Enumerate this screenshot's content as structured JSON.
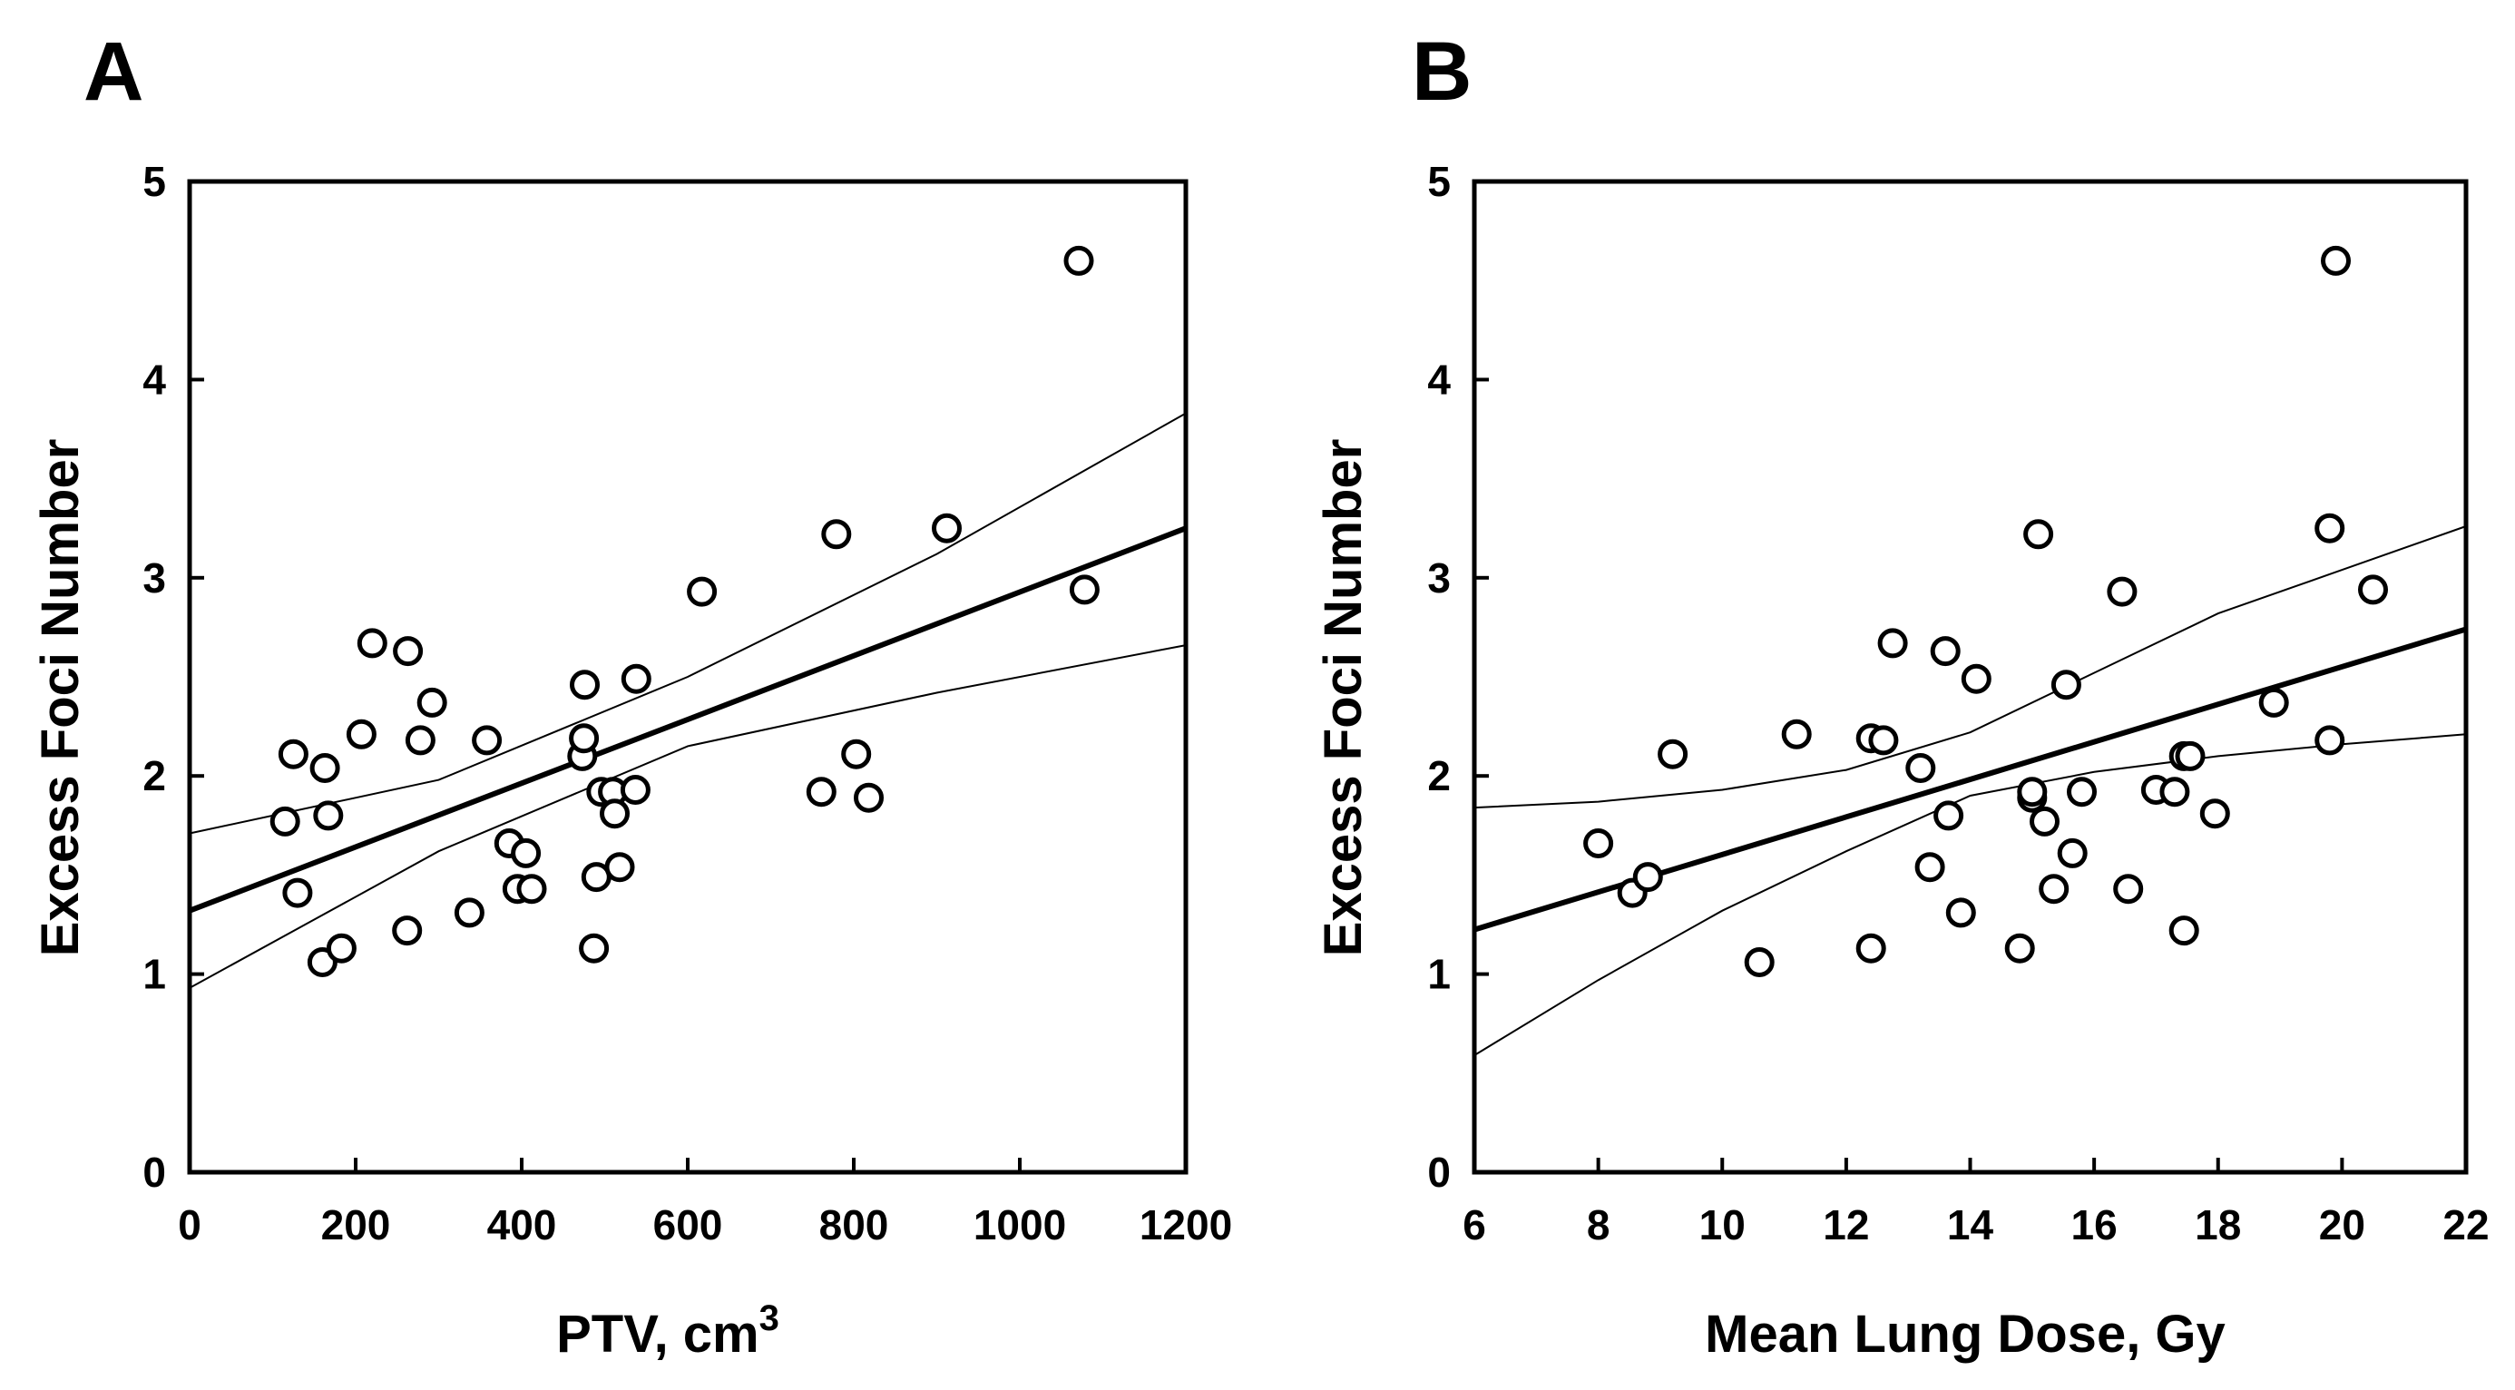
{
  "chart_data": [
    {
      "type": "scatter",
      "panel_label": "A",
      "xlabel": "PTV, cm",
      "xlabel_sup": "3",
      "ylabel": "Excess Foci Number",
      "xlim": [
        0,
        1200
      ],
      "ylim": [
        0,
        5
      ],
      "xticks": [
        0,
        200,
        400,
        600,
        800,
        1000,
        1200
      ],
      "yticks": [
        0,
        1,
        2,
        3,
        4,
        5
      ],
      "grid": false,
      "points": [
        [
          115,
          1.77
        ],
        [
          125,
          2.11
        ],
        [
          130,
          1.41
        ],
        [
          160,
          1.06
        ],
        [
          163,
          2.04
        ],
        [
          167,
          1.8
        ],
        [
          183,
          1.13
        ],
        [
          207,
          2.21
        ],
        [
          220,
          2.67
        ],
        [
          262,
          1.22
        ],
        [
          263,
          2.63
        ],
        [
          278,
          2.18
        ],
        [
          292,
          2.37
        ],
        [
          337,
          1.31
        ],
        [
          358,
          2.18
        ],
        [
          385,
          1.66
        ],
        [
          395,
          1.43
        ],
        [
          405,
          1.61
        ],
        [
          412,
          1.43
        ],
        [
          473,
          2.1
        ],
        [
          475,
          2.19
        ],
        [
          476,
          2.46
        ],
        [
          487,
          1.13
        ],
        [
          490,
          1.49
        ],
        [
          496,
          1.92
        ],
        [
          510,
          1.92
        ],
        [
          512,
          1.81
        ],
        [
          518,
          1.54
        ],
        [
          537,
          1.93
        ],
        [
          538,
          2.49
        ],
        [
          617,
          2.93
        ],
        [
          761,
          1.92
        ],
        [
          779,
          3.22
        ],
        [
          803,
          2.11
        ],
        [
          818,
          1.89
        ],
        [
          912,
          3.25
        ],
        [
          1071,
          4.6
        ],
        [
          1078,
          2.94
        ]
      ],
      "fit_line": {
        "intercept": 1.32,
        "slope": 0.0016083
      },
      "ci_upper": [
        [
          0,
          1.71
        ],
        [
          300,
          1.98
        ],
        [
          600,
          2.5
        ],
        [
          900,
          3.12
        ],
        [
          1200,
          3.83
        ]
      ],
      "ci_lower": [
        [
          0,
          0.93
        ],
        [
          300,
          1.62
        ],
        [
          600,
          2.15
        ],
        [
          900,
          2.42
        ],
        [
          1200,
          2.66
        ]
      ]
    },
    {
      "type": "scatter",
      "panel_label": "B",
      "xlabel": "Mean Lung Dose, Gy",
      "ylabel": "Excess Foci Number",
      "xlim": [
        6,
        22
      ],
      "ylim": [
        0,
        5
      ],
      "xticks": [
        6,
        8,
        10,
        12,
        14,
        16,
        18,
        20,
        22
      ],
      "yticks": [
        0,
        1,
        2,
        3,
        4,
        5
      ],
      "grid": false,
      "points": [
        [
          8.0,
          1.66
        ],
        [
          8.55,
          1.41
        ],
        [
          8.8,
          1.49
        ],
        [
          9.2,
          2.11
        ],
        [
          10.6,
          1.06
        ],
        [
          11.2,
          2.21
        ],
        [
          12.4,
          1.13
        ],
        [
          12.4,
          2.19
        ],
        [
          12.6,
          2.18
        ],
        [
          12.75,
          2.67
        ],
        [
          13.2,
          2.04
        ],
        [
          13.35,
          1.54
        ],
        [
          13.6,
          2.63
        ],
        [
          13.65,
          1.8
        ],
        [
          13.85,
          1.31
        ],
        [
          14.1,
          2.49
        ],
        [
          14.8,
          1.13
        ],
        [
          15.0,
          1.89
        ],
        [
          15.0,
          1.92
        ],
        [
          15.1,
          3.22
        ],
        [
          15.2,
          1.77
        ],
        [
          15.35,
          1.43
        ],
        [
          15.55,
          2.46
        ],
        [
          15.65,
          1.61
        ],
        [
          15.8,
          1.92
        ],
        [
          16.45,
          2.93
        ],
        [
          16.55,
          1.43
        ],
        [
          17.0,
          1.93
        ],
        [
          17.3,
          1.92
        ],
        [
          17.45,
          1.22
        ],
        [
          17.45,
          2.1
        ],
        [
          17.55,
          2.1
        ],
        [
          17.95,
          1.81
        ],
        [
          18.9,
          2.37
        ],
        [
          19.8,
          3.25
        ],
        [
          19.8,
          2.18
        ],
        [
          19.9,
          4.6
        ],
        [
          20.5,
          2.94
        ]
      ],
      "fit_line": {
        "intercept": 0.656,
        "slope": 0.09475
      },
      "ci_upper": [
        [
          6,
          1.84
        ],
        [
          8,
          1.87
        ],
        [
          10,
          1.93
        ],
        [
          12,
          2.03
        ],
        [
          14,
          2.22
        ],
        [
          16,
          2.52
        ],
        [
          18,
          2.82
        ],
        [
          20,
          3.04
        ],
        [
          22,
          3.26
        ]
      ],
      "ci_lower": [
        [
          6,
          0.59
        ],
        [
          8,
          0.97
        ],
        [
          10,
          1.32
        ],
        [
          12,
          1.62
        ],
        [
          14,
          1.9
        ],
        [
          16,
          2.02
        ],
        [
          18,
          2.1
        ],
        [
          20,
          2.16
        ],
        [
          22,
          2.21
        ]
      ]
    }
  ]
}
